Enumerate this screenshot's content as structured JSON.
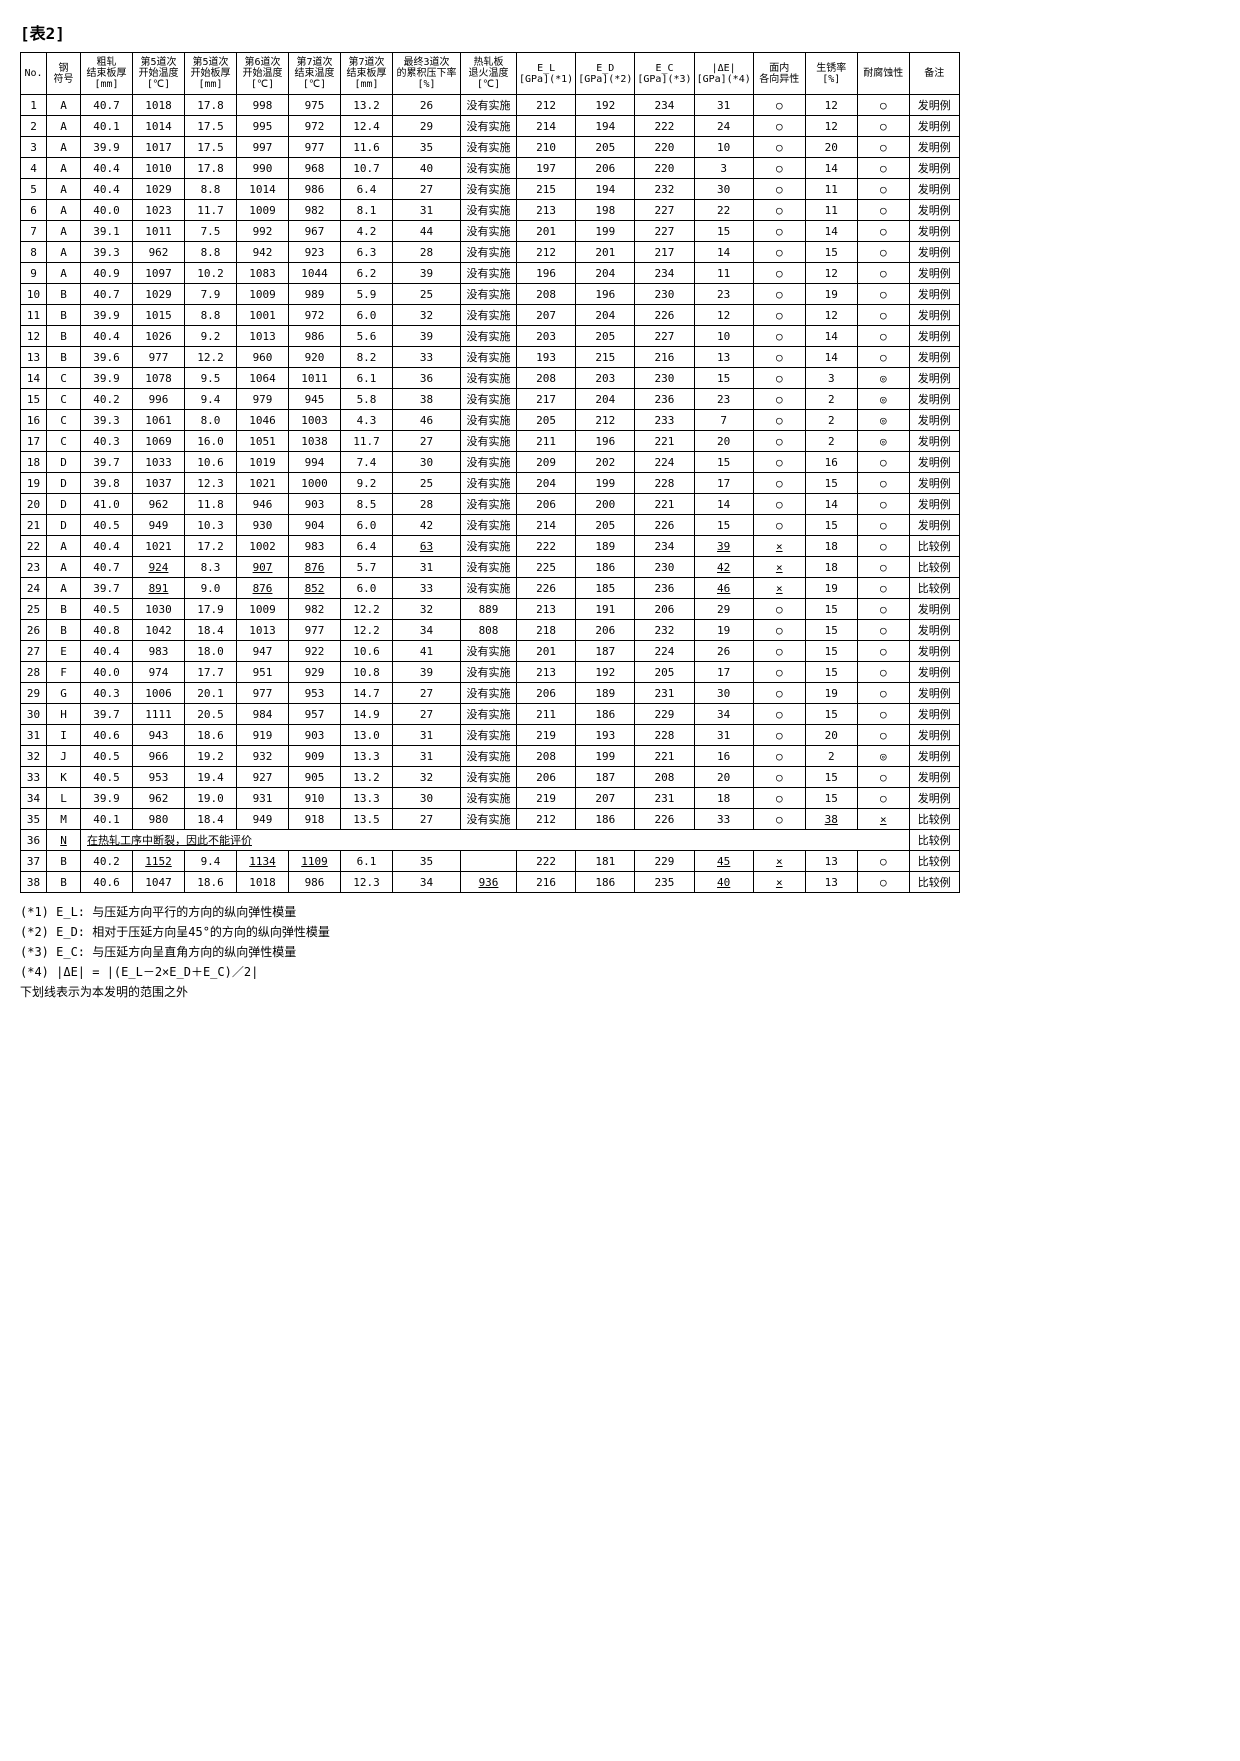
{
  "title": "[表2]",
  "headers": [
    "No.",
    "钢\n符号",
    "粗轧\n结束板厚\n[mm]",
    "第5道次\n开始温度\n[℃]",
    "第5道次\n开始板厚\n[mm]",
    "第6道次\n开始温度\n[℃]",
    "第7道次\n结束温度\n[℃]",
    "第7道次\n结束板厚\n[mm]",
    "最终3道次\n的累积压下率\n[%]",
    "热轧板\n退火温度\n[℃]",
    "E_L\n[GPa](*1)",
    "E_D\n[GPa](*2)",
    "E_C\n[GPa](*3)",
    "|ΔE|\n[GPa](*4)",
    "面内\n各向异性",
    "生锈率\n[%]",
    "耐腐蚀性",
    "备注"
  ],
  "rows": [
    {
      "no": "1",
      "sym": "A",
      "d": [
        "40.7",
        "1018",
        "17.8",
        "998",
        "975",
        "13.2",
        "26",
        "没有实施",
        "212",
        "192",
        "234",
        "31",
        "○",
        "12",
        "○",
        "发明例"
      ]
    },
    {
      "no": "2",
      "sym": "A",
      "d": [
        "40.1",
        "1014",
        "17.5",
        "995",
        "972",
        "12.4",
        "29",
        "没有实施",
        "214",
        "194",
        "222",
        "24",
        "○",
        "12",
        "○",
        "发明例"
      ]
    },
    {
      "no": "3",
      "sym": "A",
      "d": [
        "39.9",
        "1017",
        "17.5",
        "997",
        "977",
        "11.6",
        "35",
        "没有实施",
        "210",
        "205",
        "220",
        "10",
        "○",
        "20",
        "○",
        "发明例"
      ]
    },
    {
      "no": "4",
      "sym": "A",
      "d": [
        "40.4",
        "1010",
        "17.8",
        "990",
        "968",
        "10.7",
        "40",
        "没有实施",
        "197",
        "206",
        "220",
        "3",
        "○",
        "14",
        "○",
        "发明例"
      ]
    },
    {
      "no": "5",
      "sym": "A",
      "d": [
        "40.4",
        "1029",
        "8.8",
        "1014",
        "986",
        "6.4",
        "27",
        "没有实施",
        "215",
        "194",
        "232",
        "30",
        "○",
        "11",
        "○",
        "发明例"
      ]
    },
    {
      "no": "6",
      "sym": "A",
      "d": [
        "40.0",
        "1023",
        "11.7",
        "1009",
        "982",
        "8.1",
        "31",
        "没有实施",
        "213",
        "198",
        "227",
        "22",
        "○",
        "11",
        "○",
        "发明例"
      ]
    },
    {
      "no": "7",
      "sym": "A",
      "d": [
        "39.1",
        "1011",
        "7.5",
        "992",
        "967",
        "4.2",
        "44",
        "没有实施",
        "201",
        "199",
        "227",
        "15",
        "○",
        "14",
        "○",
        "发明例"
      ]
    },
    {
      "no": "8",
      "sym": "A",
      "d": [
        "39.3",
        "962",
        "8.8",
        "942",
        "923",
        "6.3",
        "28",
        "没有实施",
        "212",
        "201",
        "217",
        "14",
        "○",
        "15",
        "○",
        "发明例"
      ]
    },
    {
      "no": "9",
      "sym": "A",
      "d": [
        "40.9",
        "1097",
        "10.2",
        "1083",
        "1044",
        "6.2",
        "39",
        "没有实施",
        "196",
        "204",
        "234",
        "11",
        "○",
        "12",
        "○",
        "发明例"
      ]
    },
    {
      "no": "10",
      "sym": "B",
      "d": [
        "40.7",
        "1029",
        "7.9",
        "1009",
        "989",
        "5.9",
        "25",
        "没有实施",
        "208",
        "196",
        "230",
        "23",
        "○",
        "19",
        "○",
        "发明例"
      ]
    },
    {
      "no": "11",
      "sym": "B",
      "d": [
        "39.9",
        "1015",
        "8.8",
        "1001",
        "972",
        "6.0",
        "32",
        "没有实施",
        "207",
        "204",
        "226",
        "12",
        "○",
        "12",
        "○",
        "发明例"
      ]
    },
    {
      "no": "12",
      "sym": "B",
      "d": [
        "40.4",
        "1026",
        "9.2",
        "1013",
        "986",
        "5.6",
        "39",
        "没有实施",
        "203",
        "205",
        "227",
        "10",
        "○",
        "14",
        "○",
        "发明例"
      ]
    },
    {
      "no": "13",
      "sym": "B",
      "d": [
        "39.6",
        "977",
        "12.2",
        "960",
        "920",
        "8.2",
        "33",
        "没有实施",
        "193",
        "215",
        "216",
        "13",
        "○",
        "14",
        "○",
        "发明例"
      ]
    },
    {
      "no": "14",
      "sym": "C",
      "d": [
        "39.9",
        "1078",
        "9.5",
        "1064",
        "1011",
        "6.1",
        "36",
        "没有实施",
        "208",
        "203",
        "230",
        "15",
        "○",
        "3",
        "◎",
        "发明例"
      ]
    },
    {
      "no": "15",
      "sym": "C",
      "d": [
        "40.2",
        "996",
        "9.4",
        "979",
        "945",
        "5.8",
        "38",
        "没有实施",
        "217",
        "204",
        "236",
        "23",
        "○",
        "2",
        "◎",
        "发明例"
      ]
    },
    {
      "no": "16",
      "sym": "C",
      "d": [
        "39.3",
        "1061",
        "8.0",
        "1046",
        "1003",
        "4.3",
        "46",
        "没有实施",
        "205",
        "212",
        "233",
        "7",
        "○",
        "2",
        "◎",
        "发明例"
      ]
    },
    {
      "no": "17",
      "sym": "C",
      "d": [
        "40.3",
        "1069",
        "16.0",
        "1051",
        "1038",
        "11.7",
        "27",
        "没有实施",
        "211",
        "196",
        "221",
        "20",
        "○",
        "2",
        "◎",
        "发明例"
      ]
    },
    {
      "no": "18",
      "sym": "D",
      "d": [
        "39.7",
        "1033",
        "10.6",
        "1019",
        "994",
        "7.4",
        "30",
        "没有实施",
        "209",
        "202",
        "224",
        "15",
        "○",
        "16",
        "○",
        "发明例"
      ]
    },
    {
      "no": "19",
      "sym": "D",
      "d": [
        "39.8",
        "1037",
        "12.3",
        "1021",
        "1000",
        "9.2",
        "25",
        "没有实施",
        "204",
        "199",
        "228",
        "17",
        "○",
        "15",
        "○",
        "发明例"
      ]
    },
    {
      "no": "20",
      "sym": "D",
      "d": [
        "41.0",
        "962",
        "11.8",
        "946",
        "903",
        "8.5",
        "28",
        "没有实施",
        "206",
        "200",
        "221",
        "14",
        "○",
        "14",
        "○",
        "发明例"
      ]
    },
    {
      "no": "21",
      "sym": "D",
      "d": [
        "40.5",
        "949",
        "10.3",
        "930",
        "904",
        "6.0",
        "42",
        "没有实施",
        "214",
        "205",
        "226",
        "15",
        "○",
        "15",
        "○",
        "发明例"
      ]
    },
    {
      "no": "22",
      "sym": "A",
      "d": [
        "40.4",
        "1021",
        "17.2",
        "1002",
        "983",
        "6.4",
        "63",
        "没有实施",
        "222",
        "189",
        "234",
        "39",
        "×",
        "18",
        "○",
        "比较例"
      ],
      "u": [
        8,
        13,
        14
      ]
    },
    {
      "no": "23",
      "sym": "A",
      "d": [
        "40.7",
        "924",
        "8.3",
        "907",
        "876",
        "5.7",
        "31",
        "没有实施",
        "225",
        "186",
        "230",
        "42",
        "×",
        "18",
        "○",
        "比较例"
      ],
      "u": [
        3,
        5,
        6,
        13,
        14
      ]
    },
    {
      "no": "24",
      "sym": "A",
      "d": [
        "39.7",
        "891",
        "9.0",
        "876",
        "852",
        "6.0",
        "33",
        "没有实施",
        "226",
        "185",
        "236",
        "46",
        "×",
        "19",
        "○",
        "比较例"
      ],
      "u": [
        3,
        5,
        6,
        13,
        14
      ]
    },
    {
      "no": "25",
      "sym": "B",
      "d": [
        "40.5",
        "1030",
        "17.9",
        "1009",
        "982",
        "12.2",
        "32",
        "889",
        "213",
        "191",
        "206",
        "29",
        "○",
        "15",
        "○",
        "发明例"
      ]
    },
    {
      "no": "26",
      "sym": "B",
      "d": [
        "40.8",
        "1042",
        "18.4",
        "1013",
        "977",
        "12.2",
        "34",
        "808",
        "218",
        "206",
        "232",
        "19",
        "○",
        "15",
        "○",
        "发明例"
      ]
    },
    {
      "no": "27",
      "sym": "E",
      "d": [
        "40.4",
        "983",
        "18.0",
        "947",
        "922",
        "10.6",
        "41",
        "没有实施",
        "201",
        "187",
        "224",
        "26",
        "○",
        "15",
        "○",
        "发明例"
      ]
    },
    {
      "no": "28",
      "sym": "F",
      "d": [
        "40.0",
        "974",
        "17.7",
        "951",
        "929",
        "10.8",
        "39",
        "没有实施",
        "213",
        "192",
        "205",
        "17",
        "○",
        "15",
        "○",
        "发明例"
      ]
    },
    {
      "no": "29",
      "sym": "G",
      "d": [
        "40.3",
        "1006",
        "20.1",
        "977",
        "953",
        "14.7",
        "27",
        "没有实施",
        "206",
        "189",
        "231",
        "30",
        "○",
        "19",
        "○",
        "发明例"
      ]
    },
    {
      "no": "30",
      "sym": "H",
      "d": [
        "39.7",
        "1111",
        "20.5",
        "984",
        "957",
        "14.9",
        "27",
        "没有实施",
        "211",
        "186",
        "229",
        "34",
        "○",
        "15",
        "○",
        "发明例"
      ]
    },
    {
      "no": "31",
      "sym": "I",
      "d": [
        "40.6",
        "943",
        "18.6",
        "919",
        "903",
        "13.0",
        "31",
        "没有实施",
        "219",
        "193",
        "228",
        "31",
        "○",
        "20",
        "○",
        "发明例"
      ]
    },
    {
      "no": "32",
      "sym": "J",
      "d": [
        "40.5",
        "966",
        "19.2",
        "932",
        "909",
        "13.3",
        "31",
        "没有实施",
        "208",
        "199",
        "221",
        "16",
        "○",
        "2",
        "◎",
        "发明例"
      ]
    },
    {
      "no": "33",
      "sym": "K",
      "d": [
        "40.5",
        "953",
        "19.4",
        "927",
        "905",
        "13.2",
        "32",
        "没有实施",
        "206",
        "187",
        "208",
        "20",
        "○",
        "15",
        "○",
        "发明例"
      ]
    },
    {
      "no": "34",
      "sym": "L",
      "d": [
        "39.9",
        "962",
        "19.0",
        "931",
        "910",
        "13.3",
        "30",
        "没有实施",
        "219",
        "207",
        "231",
        "18",
        "○",
        "15",
        "○",
        "发明例"
      ]
    },
    {
      "no": "35",
      "sym": "M",
      "d": [
        "40.1",
        "980",
        "18.4",
        "949",
        "918",
        "13.5",
        "27",
        "没有实施",
        "212",
        "186",
        "226",
        "33",
        "○",
        "38",
        "×",
        "比较例"
      ],
      "u": [
        15,
        16
      ]
    },
    {
      "no": "37",
      "sym": "B",
      "d": [
        "40.2",
        "1152",
        "9.4",
        "1134",
        "1109",
        "6.1",
        "35",
        "",
        "222",
        "181",
        "229",
        "45",
        "×",
        "13",
        "○",
        "比较例"
      ],
      "u": [
        3,
        5,
        6,
        13,
        14
      ]
    },
    {
      "no": "38",
      "sym": "B",
      "d": [
        "40.6",
        "1047",
        "18.6",
        "1018",
        "986",
        "12.3",
        "34",
        "936",
        "216",
        "186",
        "235",
        "40",
        "×",
        "13",
        "○",
        "比较例"
      ],
      "u": [
        9,
        13,
        14
      ]
    }
  ],
  "row36": {
    "no": "36",
    "sym": "N",
    "text": "在热轧工序中断裂，因此不能评价",
    "note": "比较例"
  },
  "footnotes": [
    "(*1) E_L: 与压延方向平行的方向的纵向弹性模量",
    "(*2) E_D: 相对于压延方向呈45°的方向的纵向弹性模量",
    "(*3) E_C: 与压延方向呈直角方向的纵向弹性模量",
    "(*4) |ΔE| = |(E_L－2×E_D＋E_C)／2|",
    "下划线表示为本发明的范围之外"
  ],
  "style": {
    "bg": "#ffffff",
    "border": "#000000",
    "font_size_header": 10,
    "font_size_cell": 11
  }
}
